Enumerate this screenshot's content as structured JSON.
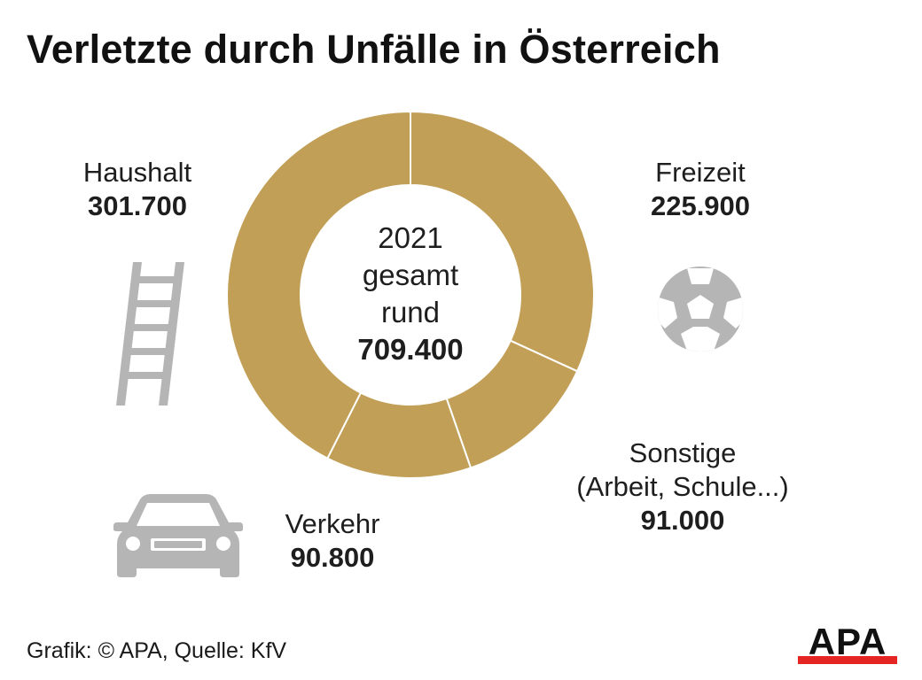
{
  "title": "Verletzte durch Unfälle in Österreich",
  "center": {
    "line1": "2021",
    "line2": "gesamt",
    "line3": "rund",
    "value": "709.400"
  },
  "chart_data": {
    "type": "pie",
    "title": "Verletzte durch Unfälle in Österreich",
    "year": "2021",
    "total": 709400,
    "slices": [
      {
        "label": "Freizeit",
        "value": 225900,
        "display": "225.900"
      },
      {
        "label": "Sonstige (Arbeit, Schule...)",
        "value": 91000,
        "display": "91.000"
      },
      {
        "label": "Verkehr",
        "value": 90800,
        "display": "90.800"
      },
      {
        "label": "Haushalt",
        "value": 301700,
        "display": "301.700"
      }
    ],
    "colors": {
      "slice": "#c29f57",
      "divider": "#ffffff"
    }
  },
  "labels": {
    "haushalt": {
      "name": "Haushalt",
      "value": "301.700"
    },
    "freizeit": {
      "name": "Freizeit",
      "value": "225.900"
    },
    "sonstige": {
      "name_line1": "Sonstige",
      "name_line2": "(Arbeit, Schule...)",
      "value": "91.000"
    },
    "verkehr": {
      "name": "Verkehr",
      "value": "90.800"
    }
  },
  "icons": {
    "haushalt": "ladder-icon",
    "freizeit": "soccer-ball-icon",
    "verkehr": "car-icon"
  },
  "footer": "Grafik: © APA, Quelle: KfV",
  "logo": {
    "text": "APA",
    "color": "#e52521"
  }
}
